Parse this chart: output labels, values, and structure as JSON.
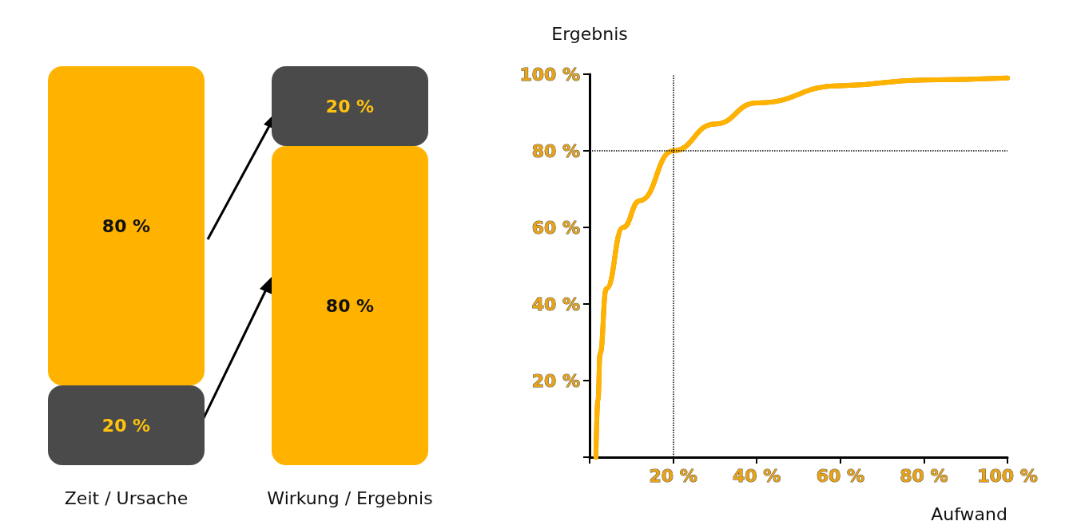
{
  "chart_data": [
    {
      "type": "bar",
      "stacked": true,
      "categories": [
        "Zeit / Ursache",
        "Wirkung / Ergebnis"
      ],
      "tick_labels": "x",
      "series": [
        {
          "colors": [
            "#4a4a4a",
            "#ffb300"
          ],
          "values": [
            20,
            80
          ],
          "value_labels": [
            "20 %",
            "80 %"
          ]
        },
        {
          "colors": [
            "#ffb300",
            "#4a4a4a"
          ],
          "values": [
            80,
            20
          ],
          "value_labels": [
            "80 %",
            "20 %"
          ]
        }
      ]
    },
    {
      "type": "line",
      "xlabel": "Aufwand",
      "ylabel": "Ergebnis",
      "marker": "none",
      "line_style": "solid",
      "xlim": [
        0,
        100
      ],
      "ylim": [
        0,
        100
      ],
      "xticks": [
        {
          "value": 0,
          "label": null
        },
        {
          "value": 20,
          "label": "20 %"
        },
        {
          "value": 40,
          "label": "40 %"
        },
        {
          "value": 60,
          "label": "60 %"
        },
        {
          "value": 80,
          "label": "80 %"
        },
        {
          "value": 100,
          "label": "100 %"
        }
      ],
      "yticks": [
        {
          "value": 0,
          "label": null
        },
        {
          "value": 20,
          "label": "20 %"
        },
        {
          "value": 40,
          "label": "40 %"
        },
        {
          "value": 60,
          "label": "60 %"
        },
        {
          "value": 80,
          "label": "80 %"
        },
        {
          "value": 100,
          "label": "100 %"
        }
      ],
      "ref_lines": [
        {
          "axis": "x",
          "value": 20,
          "line_style": "dotted",
          "color": "#000000"
        },
        {
          "axis": "y",
          "value": 80,
          "line_style": "dotted",
          "color": "#000000"
        }
      ],
      "series": [
        {
          "color": "#ffb300",
          "x": [
            1.5,
            2,
            2.5,
            4,
            8,
            12,
            20,
            30,
            40,
            60,
            80,
            100
          ],
          "values": [
            0,
            15,
            27,
            44,
            60,
            67,
            80,
            87,
            92.5,
            97,
            98.5,
            99
          ]
        }
      ]
    }
  ]
}
